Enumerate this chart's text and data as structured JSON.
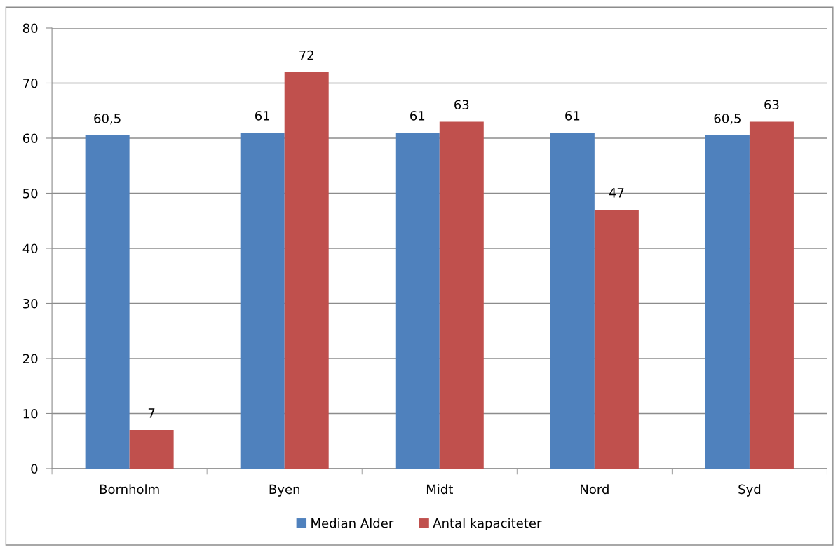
{
  "chart_data": {
    "type": "bar",
    "categories": [
      "Bornholm",
      "Byen",
      "Midt",
      "Nord",
      "Syd"
    ],
    "series": [
      {
        "name": "Median Alder",
        "color": "#4f81bd",
        "values": [
          60.5,
          61,
          61,
          61,
          60.5
        ],
        "value_labels": [
          "60,5",
          "61",
          "61",
          "61",
          "60,5"
        ]
      },
      {
        "name": "Antal kapaciteter",
        "color": "#c0504d",
        "values": [
          7,
          72,
          63,
          47,
          63
        ],
        "value_labels": [
          "7",
          "72",
          "63",
          "47",
          "63"
        ]
      }
    ],
    "ylim": [
      0,
      80
    ],
    "yticks": [
      0,
      10,
      20,
      30,
      40,
      50,
      60,
      70,
      80
    ],
    "grid": "y",
    "legend": "bottom"
  }
}
